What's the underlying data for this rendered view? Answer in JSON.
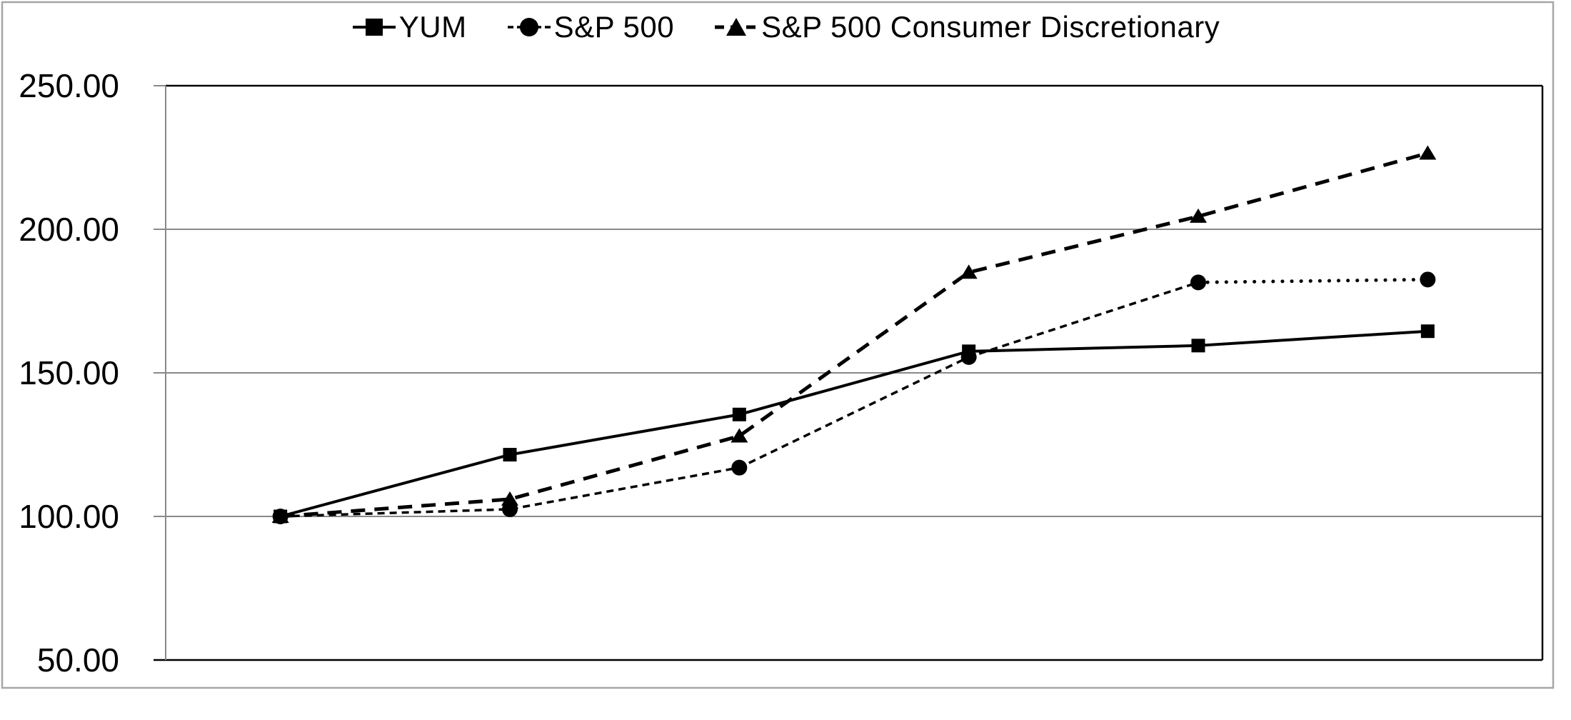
{
  "chart_data": {
    "type": "line",
    "title": "",
    "legend_position": "top",
    "x_axis": {
      "labels_visible": false,
      "num_points": 6,
      "categories": [
        "",
        "",
        "",
        "",
        "",
        ""
      ]
    },
    "y_axis": {
      "tick_labels": [
        "250.00",
        "200.00",
        "150.00",
        "100.00",
        "50.00"
      ],
      "min": 50,
      "max": 250,
      "gridlines": true
    },
    "series": [
      {
        "name": "YUM",
        "marker": "square",
        "line_style": "solid",
        "color": "#000000",
        "values": [
          100,
          121.5,
          135.5,
          157.5,
          159.5,
          164.5
        ]
      },
      {
        "name": "S&P 500",
        "marker": "circle",
        "line_style": "fine-dash",
        "final_segment_style": "dotted",
        "color": "#000000",
        "values": [
          100,
          102.5,
          117,
          155.5,
          181.5,
          182.5
        ]
      },
      {
        "name": "S&P 500 Consumer Discretionary",
        "marker": "triangle",
        "line_style": "long-dash",
        "color": "#000000",
        "values": [
          100,
          106,
          128,
          185,
          204.5,
          226.5
        ]
      }
    ],
    "colors": {
      "series": "#000000",
      "gridline": "#898989",
      "axis_line": "#898989",
      "plot_border": "#000000",
      "outer_border": "#a6a6a6",
      "background": "#ffffff"
    }
  }
}
